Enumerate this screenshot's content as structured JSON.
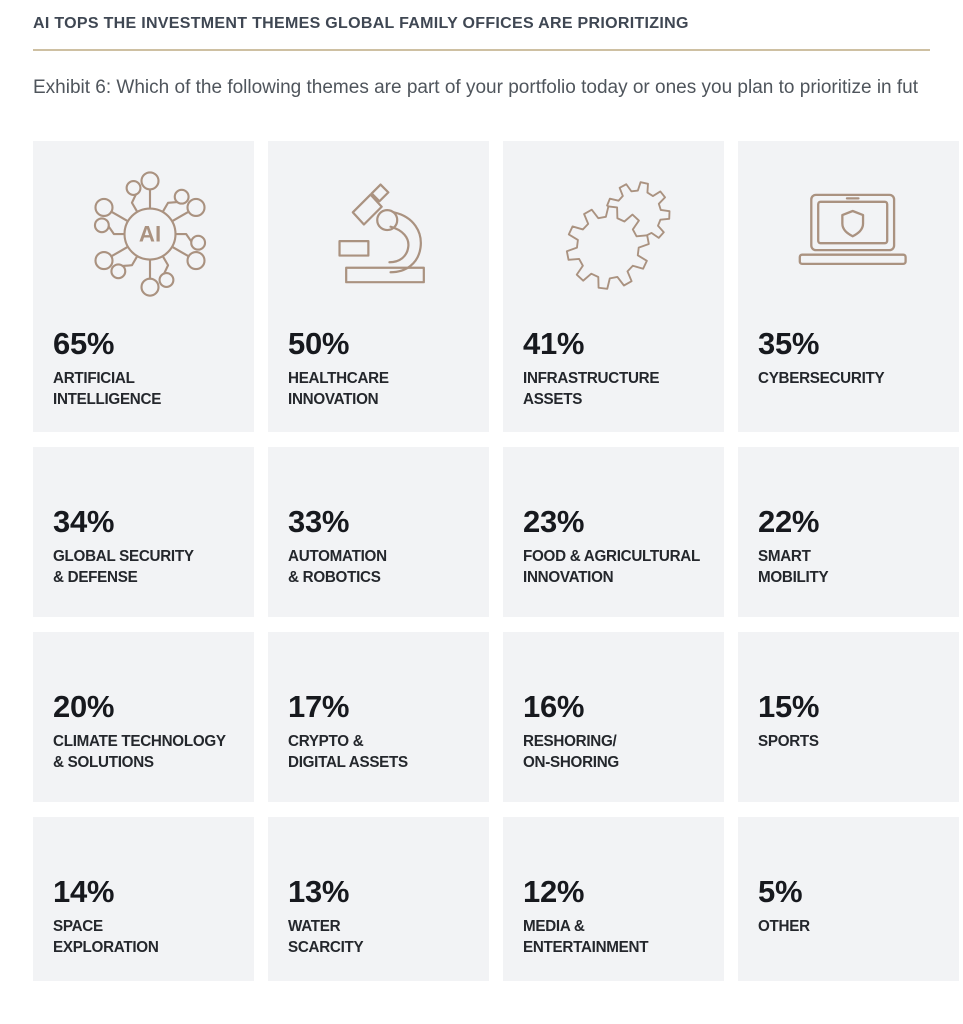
{
  "header": {
    "title": "AI TOPS THE INVESTMENT THEMES GLOBAL FAMILY OFFICES ARE PRIORITIZING",
    "subtitle": "Exhibit 6: Which of the following themes are part of your portfolio today or ones you plan to prioritize in fut"
  },
  "colors": {
    "accent": "#aa9280",
    "card_bg": "#f2f3f5",
    "title": "#3f4753",
    "divider": "#cec0a2",
    "subtitle": "#4f555c",
    "pct": "#17191e",
    "label": "#24272c"
  },
  "icons": {
    "ai_label": "AI",
    "row1": [
      "ai-network-icon",
      "microscope-icon",
      "gears-icon",
      "laptop-shield-icon"
    ]
  },
  "cards": [
    {
      "pct": "65%",
      "label": "ARTIFICIAL\nINTELLIGENCE",
      "icon": "ai-network-icon"
    },
    {
      "pct": "50%",
      "label": "HEALTHCARE\nINNOVATION",
      "icon": "microscope-icon"
    },
    {
      "pct": "41%",
      "label": "INFRASTRUCTURE\nASSETS",
      "icon": "gears-icon"
    },
    {
      "pct": "35%",
      "label": "CYBERSECURITY",
      "icon": "laptop-shield-icon"
    },
    {
      "pct": "34%",
      "label": "GLOBAL SECURITY\n& DEFENSE"
    },
    {
      "pct": "33%",
      "label": "AUTOMATION\n& ROBOTICS"
    },
    {
      "pct": "23%",
      "label": "FOOD & AGRICULTURAL\nINNOVATION"
    },
    {
      "pct": "22%",
      "label": "SMART\nMOBILITY"
    },
    {
      "pct": "20%",
      "label": "CLIMATE TECHNOLOGY\n& SOLUTIONS"
    },
    {
      "pct": "17%",
      "label": "CRYPTO &\nDIGITAL ASSETS"
    },
    {
      "pct": "16%",
      "label": "RESHORING/\nON-SHORING"
    },
    {
      "pct": "15%",
      "label": "SPORTS"
    },
    {
      "pct": "14%",
      "label": "SPACE\nEXPLORATION"
    },
    {
      "pct": "13%",
      "label": "WATER\nSCARCITY"
    },
    {
      "pct": "12%",
      "label": "MEDIA &\nENTERTAINMENT"
    },
    {
      "pct": "5%",
      "label": "OTHER"
    }
  ],
  "chart_data": {
    "type": "table",
    "title": "AI TOPS THE INVESTMENT THEMES GLOBAL FAMILY OFFICES ARE PRIORITIZING",
    "subtitle": "Exhibit 6: Which of the following themes are part of your portfolio today or ones you plan to prioritize in fut",
    "unit": "%",
    "layout": "4x4 grid of percentage tiles, row-major descending",
    "categories": [
      "Artificial Intelligence",
      "Healthcare Innovation",
      "Infrastructure Assets",
      "Cybersecurity",
      "Global Security & Defense",
      "Automation & Robotics",
      "Food & Agricultural Innovation",
      "Smart Mobility",
      "Climate Technology & Solutions",
      "Crypto & Digital Assets",
      "Reshoring/On-shoring",
      "Sports",
      "Space Exploration",
      "Water Scarcity",
      "Media & Entertainment",
      "Other"
    ],
    "values": [
      65,
      50,
      41,
      35,
      34,
      33,
      23,
      22,
      20,
      17,
      16,
      15,
      14,
      13,
      12,
      5
    ]
  }
}
